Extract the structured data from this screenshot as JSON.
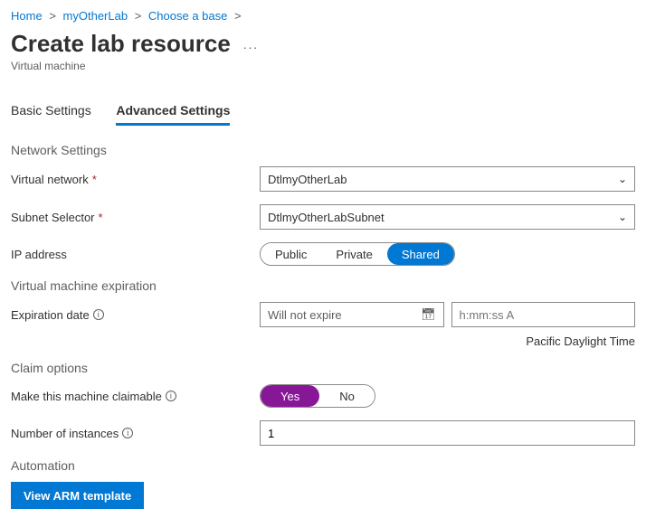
{
  "breadcrumb": {
    "items": [
      "Home",
      "myOtherLab",
      "Choose a base"
    ]
  },
  "page": {
    "title": "Create lab resource",
    "subtitle": "Virtual machine"
  },
  "tabs": {
    "basic": "Basic Settings",
    "advanced": "Advanced Settings"
  },
  "sections": {
    "network": "Network Settings",
    "vmexp": "Virtual machine expiration",
    "claim": "Claim options",
    "automation": "Automation"
  },
  "labels": {
    "vnet": "Virtual network",
    "subnet": "Subnet Selector",
    "ip": "IP address",
    "expdate": "Expiration date",
    "claimable": "Make this machine claimable",
    "instances": "Number of instances"
  },
  "values": {
    "vnet": "DtlmyOtherLab",
    "subnet": "DtlmyOtherLabSubnet",
    "expdate_placeholder": "Will not expire",
    "time_placeholder": "h:mm:ss A",
    "timezone": "Pacific Daylight Time",
    "instances": "1"
  },
  "ip_options": {
    "public": "Public",
    "private": "Private",
    "shared": "Shared"
  },
  "claim_options": {
    "yes": "Yes",
    "no": "No"
  },
  "buttons": {
    "arm": "View ARM template"
  }
}
